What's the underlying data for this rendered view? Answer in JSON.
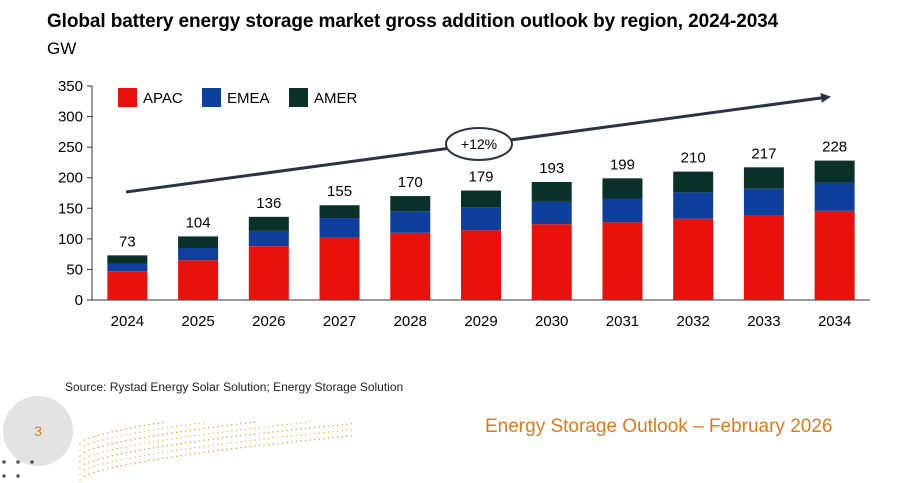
{
  "header": {
    "title": "Global battery energy storage market gross addition outlook by region, 2024-2034",
    "unit": "GW"
  },
  "chart_data": {
    "type": "bar",
    "stacked": true,
    "title": "Global battery energy storage market gross addition outlook by region, 2024-2034",
    "ylabel": "GW",
    "xlabel": "",
    "ylim": [
      0,
      350
    ],
    "yticks": [
      0,
      50,
      100,
      150,
      200,
      250,
      300,
      350
    ],
    "grid": false,
    "legend_position": "top-left",
    "categories": [
      "2024",
      "2025",
      "2026",
      "2027",
      "2028",
      "2029",
      "2030",
      "2031",
      "2032",
      "2033",
      "2034"
    ],
    "series": [
      {
        "name": "APAC",
        "color": "#e8110c",
        "values": [
          47,
          65,
          88,
          102,
          110,
          114,
          124,
          127,
          133,
          139,
          146
        ]
      },
      {
        "name": "EMEA",
        "color": "#0e3f9c",
        "values": [
          12,
          20,
          25,
          32,
          35,
          38,
          38,
          39,
          43,
          43,
          46
        ]
      },
      {
        "name": "AMER",
        "color": "#0a302a",
        "values": [
          14,
          19,
          23,
          21,
          25,
          27,
          31,
          33,
          34,
          35,
          36
        ]
      }
    ],
    "totals": [
      73,
      104,
      136,
      155,
      170,
      179,
      193,
      199,
      210,
      217,
      228
    ],
    "annotation": {
      "label": "+12%",
      "type": "growth-arrow"
    }
  },
  "source": "Source: Rystad Energy Solar Solution; Energy Storage Solution",
  "footer": {
    "page_number": "3",
    "text": "Energy Storage Outlook – February 2026",
    "accent_color": "#e07a1a"
  }
}
